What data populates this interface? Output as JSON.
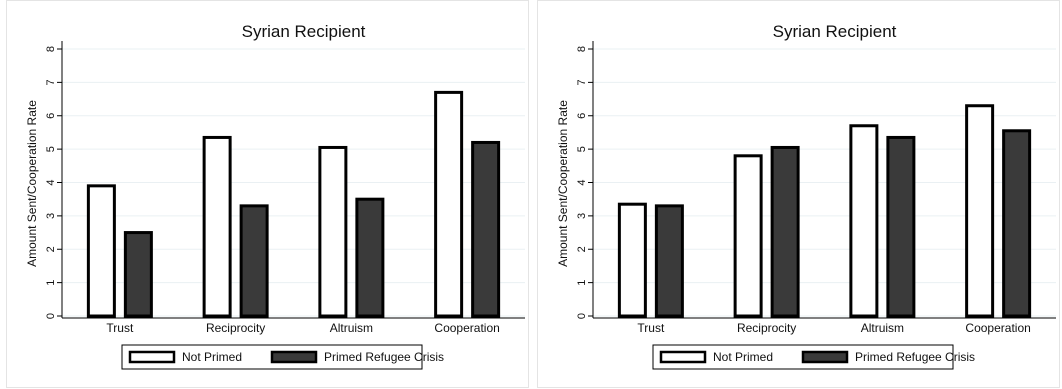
{
  "colors": {
    "not_primed_fill": "#ffffff",
    "primed_fill": "#3a3a3a",
    "bar_stroke": "#000000",
    "grid": "#eaf0f3"
  },
  "chart_data": [
    {
      "type": "bar",
      "title": "Syrian Recipient",
      "xlabel": "",
      "ylabel": "Amount Sent/Cooperation Rate",
      "ylim": [
        0,
        8
      ],
      "yticks": [
        "0",
        "1",
        "2",
        "3",
        "4",
        "5",
        "6",
        "7",
        "8"
      ],
      "categories": [
        "Trust",
        "Reciprocity",
        "Altruism",
        "Cooperation"
      ],
      "series": [
        {
          "name": "Not Primed",
          "values": [
            3.9,
            5.35,
            5.05,
            6.7
          ]
        },
        {
          "name": "Primed Refugee Crisis",
          "values": [
            2.5,
            3.3,
            3.5,
            5.2
          ]
        }
      ],
      "legend_position": "bottom",
      "grid": true
    },
    {
      "type": "bar",
      "title": "Syrian Recipient",
      "xlabel": "",
      "ylabel": "Amount Sent/Cooperation Rate",
      "ylim": [
        0,
        8
      ],
      "yticks": [
        "0",
        "1",
        "2",
        "3",
        "4",
        "5",
        "6",
        "7",
        "8"
      ],
      "categories": [
        "Trust",
        "Reciprocity",
        "Altruism",
        "Cooperation"
      ],
      "series": [
        {
          "name": "Not Primed",
          "values": [
            3.35,
            4.8,
            5.7,
            6.3
          ]
        },
        {
          "name": "Primed Refugee Crisis",
          "values": [
            3.3,
            5.05,
            5.35,
            5.55
          ]
        }
      ],
      "legend_position": "bottom",
      "grid": true
    }
  ]
}
